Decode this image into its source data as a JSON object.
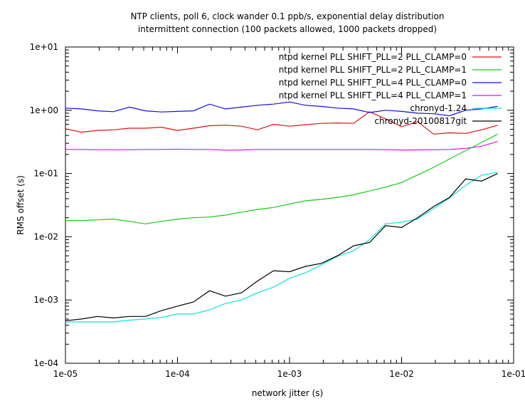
{
  "chart_data": {
    "type": "line",
    "title": "NTP clients, poll 6, clock wander 0.1 ppb/s, exponential delay distribution",
    "subtitle": "intermittent connection (100 packets allowed, 1000 packets dropped)",
    "xlabel": "network jitter (s)",
    "ylabel": "RMS offset (s)",
    "xscale": "log",
    "yscale": "log",
    "xlim": [
      1e-05,
      0.1
    ],
    "ylim": [
      0.0001,
      10
    ],
    "xticks": [
      "1e-05",
      "1e-04",
      "1e-03",
      "1e-02",
      "1e-01"
    ],
    "yticks": [
      "1e-04",
      "1e-03",
      "1e-02",
      "1e-01",
      "1e+00",
      "1e+01"
    ],
    "grid": false,
    "legend_position": "top-right",
    "x": [
      1e-05,
      1.39e-05,
      1.93e-05,
      2.68e-05,
      3.73e-05,
      5.18e-05,
      7.2e-05,
      0.0001,
      0.000139,
      0.000193,
      0.000268,
      0.000373,
      0.000518,
      0.00072,
      0.001,
      0.00139,
      0.00193,
      0.00268,
      0.00373,
      0.00518,
      0.0072,
      0.01,
      0.0139,
      0.0193,
      0.0268,
      0.0373,
      0.0518,
      0.072
    ],
    "series": [
      {
        "name": "ntpd kernel PLL SHIFT_PLL=2 PLL_CLAMP=0",
        "color": "#e01010",
        "values": [
          0.51,
          0.45,
          0.48,
          0.49,
          0.52,
          0.52,
          0.54,
          0.48,
          0.52,
          0.57,
          0.58,
          0.56,
          0.49,
          0.6,
          0.56,
          0.59,
          0.62,
          0.63,
          0.62,
          0.95,
          0.73,
          0.55,
          0.66,
          0.42,
          0.44,
          0.43,
          0.49,
          0.58
        ]
      },
      {
        "name": "ntpd kernel PLL SHIFT_PLL=2 PLL_CLAMP=1",
        "color": "#10d010",
        "values": [
          0.018,
          0.018,
          0.0185,
          0.019,
          0.0175,
          0.016,
          0.0175,
          0.019,
          0.02,
          0.0205,
          0.022,
          0.0245,
          0.027,
          0.029,
          0.033,
          0.037,
          0.039,
          0.042,
          0.046,
          0.053,
          0.061,
          0.072,
          0.095,
          0.125,
          0.17,
          0.23,
          0.31,
          0.42
        ]
      },
      {
        "name": "ntpd kernel PLL SHIFT_PLL=4 PLL_CLAMP=0",
        "color": "#1010e0",
        "values": [
          1.08,
          1.05,
          0.98,
          0.95,
          1.12,
          0.98,
          0.94,
          0.96,
          0.98,
          1.25,
          1.05,
          1.12,
          1.2,
          1.25,
          1.35,
          1.2,
          1.15,
          1.08,
          1.05,
          0.92,
          1.0,
          0.96,
          0.9,
          0.88,
          0.82,
          1.0,
          1.05,
          1.15
        ]
      },
      {
        "name": "ntpd kernel PLL SHIFT_PLL=4 PLL_CLAMP=1",
        "color": "#e010e0",
        "values": [
          0.24,
          0.24,
          0.238,
          0.237,
          0.238,
          0.24,
          0.24,
          0.242,
          0.24,
          0.24,
          0.234,
          0.235,
          0.24,
          0.24,
          0.24,
          0.24,
          0.24,
          0.24,
          0.24,
          0.24,
          0.238,
          0.235,
          0.236,
          0.238,
          0.24,
          0.25,
          0.27,
          0.32
        ]
      },
      {
        "name": "chronyd-1.24",
        "color": "#10e0e0",
        "values": [
          0.00045,
          0.00045,
          0.00045,
          0.00045,
          0.00048,
          0.0005,
          0.00053,
          0.0006,
          0.0006,
          0.0007,
          0.00088,
          0.001,
          0.0013,
          0.0016,
          0.0022,
          0.0027,
          0.0036,
          0.0049,
          0.006,
          0.009,
          0.016,
          0.017,
          0.019,
          0.028,
          0.041,
          0.065,
          0.094,
          0.105
        ]
      },
      {
        "name": "chronyd-20100817git",
        "color": "#000000",
        "values": [
          0.00047,
          0.0005,
          0.00055,
          0.00052,
          0.00055,
          0.00055,
          0.00068,
          0.0008,
          0.00093,
          0.0014,
          0.00115,
          0.0013,
          0.002,
          0.0029,
          0.0028,
          0.0034,
          0.0038,
          0.005,
          0.0072,
          0.0081,
          0.015,
          0.014,
          0.02,
          0.03,
          0.042,
          0.082,
          0.076,
          0.1
        ]
      }
    ]
  }
}
